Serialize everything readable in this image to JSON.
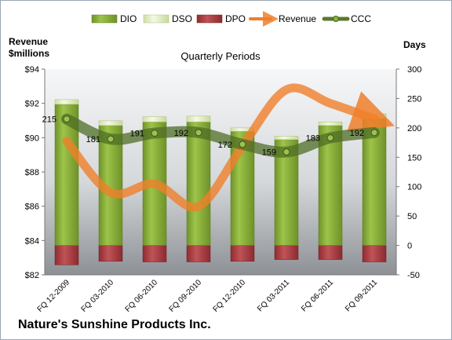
{
  "chart_data": {
    "type": "bar",
    "subtitle": "Quarterly Periods",
    "company": "Nature's Sunshine Products Inc.",
    "left_axis": {
      "label_line1": "Revenue",
      "label_line2": "$millions",
      "range": [
        82,
        94
      ],
      "ticks": [
        "$82",
        "$84",
        "$86",
        "$88",
        "$90",
        "$92",
        "$94"
      ]
    },
    "right_axis": {
      "label": "Days",
      "range": [
        -50,
        300
      ],
      "ticks": [
        "-50",
        "0",
        "50",
        "100",
        "150",
        "200",
        "250",
        "300"
      ]
    },
    "categories": [
      "FQ 12-2009",
      "FQ 03-2010",
      "FQ 06-2010",
      "FQ 09-2010",
      "FQ 12-2010",
      "FQ 03-2011",
      "FQ 06-2011",
      "FQ 09-2011"
    ],
    "series": [
      {
        "name": "DIO",
        "type": "stacked-bar",
        "axis": "right",
        "color": "#8db33b",
        "values": [
          240,
          204,
          210,
          210,
          194,
          180,
          204,
          216
        ]
      },
      {
        "name": "DSO",
        "type": "stacked-bar",
        "axis": "right",
        "color": "#e3efc6",
        "values": [
          8,
          8,
          9,
          10,
          6,
          6,
          6,
          8
        ]
      },
      {
        "name": "DPO",
        "type": "negative-bar",
        "axis": "right",
        "color": "#b04044",
        "values": [
          -33,
          -27,
          -28,
          -28,
          -27,
          -24,
          -24,
          -28
        ]
      },
      {
        "name": "Revenue",
        "type": "line",
        "axis": "left",
        "color": "#f07f2a",
        "values": [
          89.8,
          86.8,
          87.3,
          86.0,
          89.5,
          92.8,
          92.0,
          91.1
        ]
      },
      {
        "name": "CCC",
        "type": "line",
        "axis": "right",
        "color": "#5a7a2c",
        "values": [
          215,
          181,
          191,
          192,
          172,
          159,
          183,
          192
        ]
      }
    ],
    "ccc_labels": [
      "215",
      "181",
      "191",
      "192",
      "172",
      "159",
      "183",
      "192"
    ],
    "legend_position": "top",
    "grid": false
  }
}
